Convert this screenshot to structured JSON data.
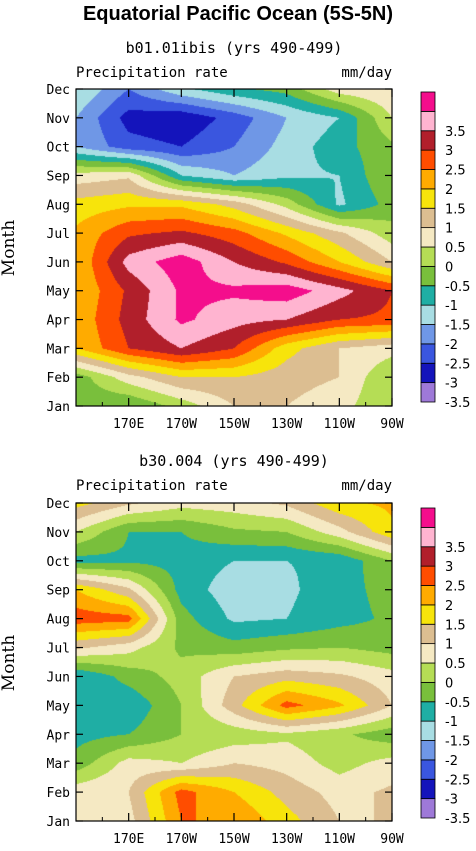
{
  "figure_title": "Equatorial Pacific Ocean (5S-5N)",
  "palette": [
    {
      "threshold": "-3.5",
      "color": "#9e79d8"
    },
    {
      "threshold": "-3",
      "color": "#1414bb"
    },
    {
      "threshold": "-2.5",
      "color": "#3a56df"
    },
    {
      "threshold": "-2",
      "color": "#6f97e6"
    },
    {
      "threshold": "-1.5",
      "color": "#a8dde3"
    },
    {
      "threshold": "-1",
      "color": "#1faea4"
    },
    {
      "threshold": "-0.5",
      "color": "#79bf3c"
    },
    {
      "threshold": "0",
      "color": "#b5dd55"
    },
    {
      "threshold": "0.5",
      "color": "#f5e9c3"
    },
    {
      "threshold": "1",
      "color": "#dcbe91"
    },
    {
      "threshold": "1.5",
      "color": "#f7e40b"
    },
    {
      "threshold": "2",
      "color": "#ffab00"
    },
    {
      "threshold": "2.5",
      "color": "#ff4d00"
    },
    {
      "threshold": "3",
      "color": "#b11f2b"
    },
    {
      "threshold": "3.5",
      "color": "#ffb4d0"
    },
    {
      "threshold": "",
      "color": "#f40e8c"
    }
  ],
  "panels": [
    {
      "subtitle": "b01.01ibis (yrs 490-499)",
      "left_label": "Precipitation rate",
      "right_label": "mm/day"
    },
    {
      "subtitle": "b30.004 (yrs 490-499)",
      "left_label": "Precipitation rate",
      "right_label": "mm/day"
    }
  ],
  "chart_data": [
    {
      "type": "heatmap",
      "title": "b01.01ibis (yrs 490-499)",
      "xlabel": "",
      "ylabel": "Month",
      "units": "mm/day",
      "x_ticks": [
        "170E",
        "170W",
        "150W",
        "130W",
        "110W",
        "90W"
      ],
      "y_ticks": [
        "Jan",
        "Feb",
        "Mar",
        "Apr",
        "May",
        "Jun",
        "Jul",
        "Aug",
        "Sep",
        "Oct",
        "Nov",
        "Dec"
      ],
      "x": [
        150,
        170,
        190,
        210,
        230,
        250,
        270
      ],
      "colorbar_levels": [
        -3.5,
        -3,
        -2.5,
        -2,
        -1.5,
        -1,
        -0.5,
        0,
        0.5,
        1,
        1.5,
        2,
        2.5,
        3,
        3.5
      ],
      "z": [
        [
          -0.8,
          -1,
          -0.3,
          0.5,
          0.5,
          0.2,
          -0.5
        ],
        [
          -0.8,
          0.3,
          1,
          1,
          0.7,
          0.5,
          -0.5
        ],
        [
          1.5,
          2.5,
          3,
          2.5,
          1.2,
          0.5,
          0.2
        ],
        [
          1.6,
          2.7,
          3.6,
          3.2,
          3,
          2.5,
          2.4
        ],
        [
          1.5,
          2.6,
          3.6,
          3.6,
          3.8,
          3.2,
          2.5
        ],
        [
          1.5,
          3.2,
          3.8,
          3,
          2.4,
          1.5,
          0.5
        ],
        [
          1.6,
          2.4,
          2.6,
          2.2,
          1.4,
          0.6,
          -0.3
        ],
        [
          1.2,
          1.4,
          1.4,
          0.8,
          -0.2,
          -1.6,
          -0.8
        ],
        [
          0.2,
          0.4,
          -1.5,
          -2,
          -1.6,
          -1.5,
          -0.5
        ],
        [
          -2,
          -2.8,
          -3,
          -2.5,
          -1.8,
          -1.2,
          -0.6
        ],
        [
          -2,
          -3.2,
          -3.4,
          -2.8,
          -2,
          -1.5,
          0
        ],
        [
          -1.5,
          -2.5,
          -1.6,
          -1.1,
          -0.8,
          0.3,
          0.5
        ]
      ]
    },
    {
      "type": "heatmap",
      "title": "b30.004 (yrs 490-499)",
      "xlabel": "",
      "ylabel": "Month",
      "units": "mm/day",
      "x_ticks": [
        "170E",
        "170W",
        "150W",
        "130W",
        "110W",
        "90W"
      ],
      "y_ticks": [
        "Jan",
        "Feb",
        "Mar",
        "Apr",
        "May",
        "Jun",
        "Jul",
        "Aug",
        "Sep",
        "Oct",
        "Nov",
        "Dec"
      ],
      "x": [
        150,
        170,
        190,
        210,
        230,
        250,
        270
      ],
      "colorbar_levels": [
        -3.5,
        -3,
        -2.5,
        -2,
        -1.5,
        -1,
        -0.5,
        0,
        0.5,
        1,
        1.5,
        2,
        2.5,
        3,
        3.5
      ],
      "z": [
        [
          0.5,
          0.3,
          2,
          2,
          1.2,
          0.5,
          0.5
        ],
        [
          0.3,
          0.5,
          2.2,
          1.5,
          0.8,
          0.3,
          0.6
        ],
        [
          -0.8,
          0.2,
          0,
          0.5,
          0.3,
          -0.2,
          0.2
        ],
        [
          -1.2,
          -1,
          -0.5,
          -0.3,
          -0.1,
          -0.4,
          -0.8
        ],
        [
          -1.3,
          -1.4,
          -0.5,
          0.8,
          2.2,
          1.6,
          0.5
        ],
        [
          -1.5,
          -0.8,
          -0.3,
          0.5,
          0.8,
          0.6,
          0.2
        ],
        [
          0.6,
          0.2,
          -0.6,
          -0.8,
          -0.6,
          -0.5,
          -0.7
        ],
        [
          2.3,
          2.2,
          -0.8,
          -1.6,
          -1.5,
          -1.2,
          -0.9
        ],
        [
          1.5,
          0.6,
          -1.2,
          -1.8,
          -1.6,
          -1.2,
          -0.8
        ],
        [
          -1.2,
          -1.1,
          -1.2,
          -1.5,
          -1.5,
          -1.4,
          -0.5
        ],
        [
          0,
          -1,
          -1,
          -0.6,
          -0.5,
          0.3,
          1.4
        ],
        [
          1.2,
          0.6,
          0.2,
          0.3,
          0.6,
          1.4,
          1.6
        ]
      ]
    }
  ]
}
